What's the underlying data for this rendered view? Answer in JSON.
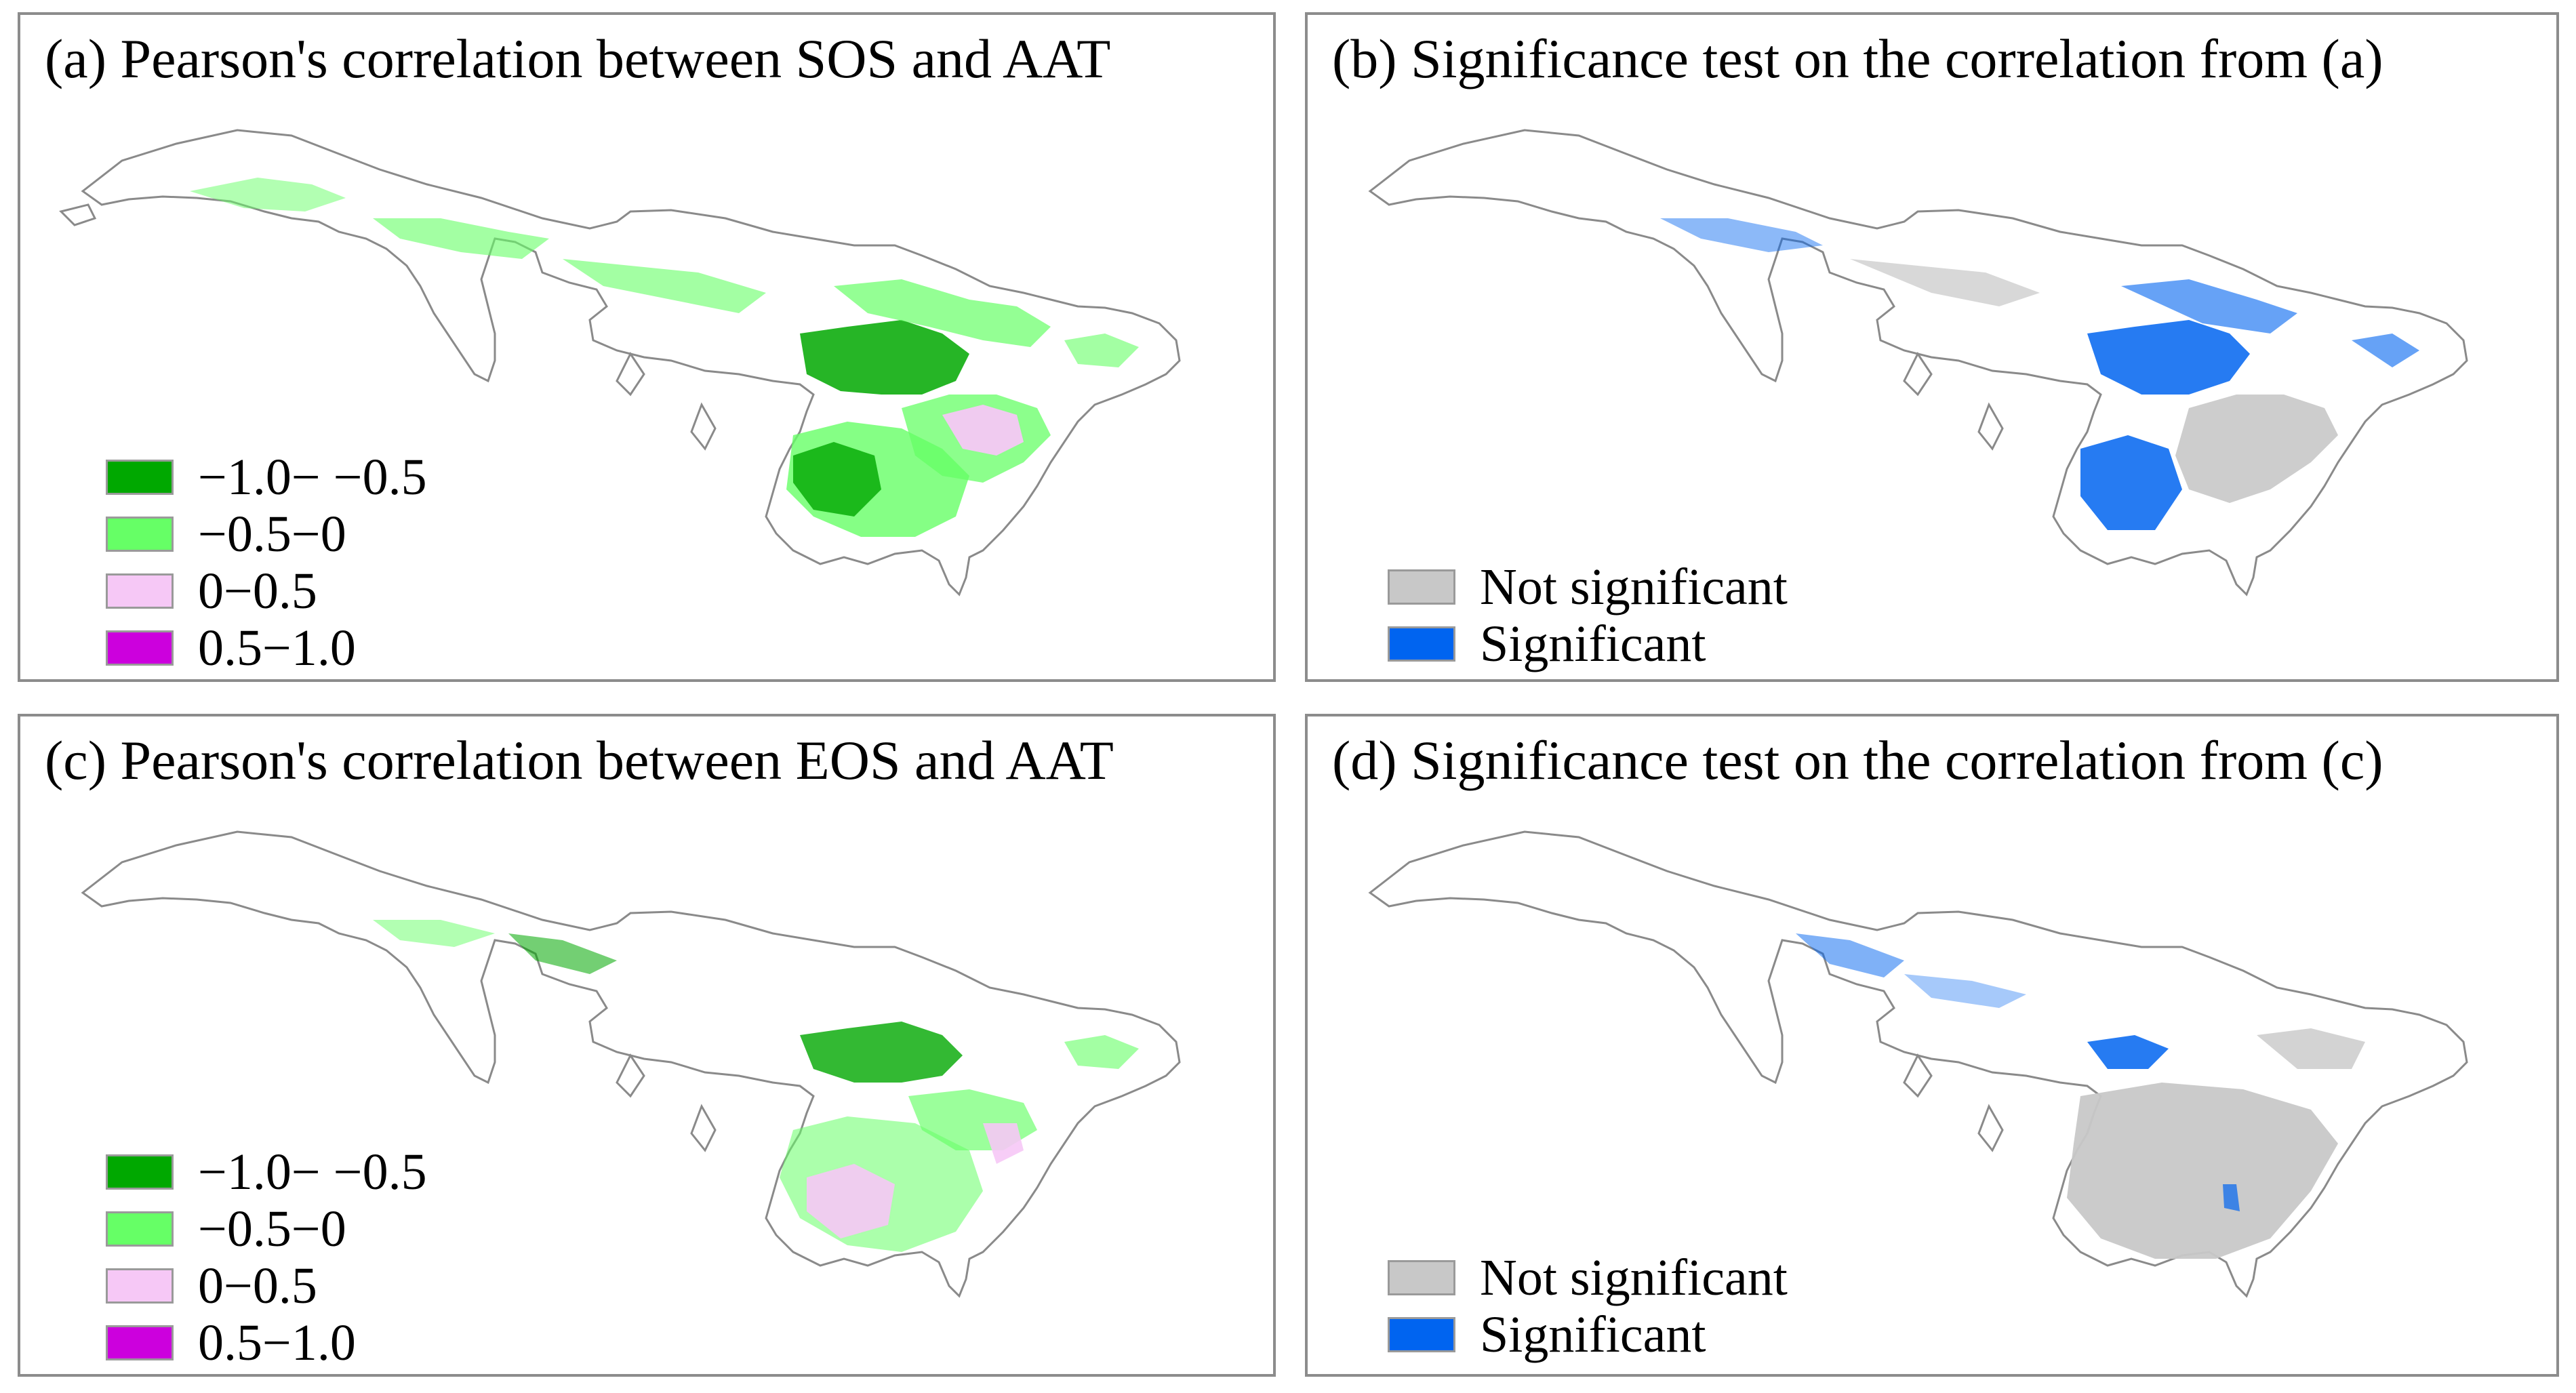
{
  "colors": {
    "strong_negative": "#00a800",
    "weak_negative": "#66ff66",
    "weak_positive": "#f6c8f6",
    "strong_positive": "#cc00dd",
    "not_significant": "#c8c8c8",
    "significant": "#0064f0",
    "outline": "#8a8a8a"
  },
  "panels": {
    "a": {
      "title": "(a) Pearson's correlation between SOS and AAT",
      "legend": [
        {
          "label": "−1.0− −0.5",
          "color": "#00a800"
        },
        {
          "label": "−0.5−0",
          "color": "#66ff66"
        },
        {
          "label": "0−0.5",
          "color": "#f6c8f6"
        },
        {
          "label": "0.5−1.0",
          "color": "#cc00dd"
        }
      ]
    },
    "b": {
      "title": "(b) Significance test on the correlation from (a)",
      "legend": [
        {
          "label": "Not significant",
          "color": "#c8c8c8"
        },
        {
          "label": "Significant",
          "color": "#0064f0"
        }
      ]
    },
    "c": {
      "title": "(c) Pearson's correlation between EOS and AAT",
      "legend": [
        {
          "label": "−1.0− −0.5",
          "color": "#00a800"
        },
        {
          "label": "−0.5−0",
          "color": "#66ff66"
        },
        {
          "label": "0−0.5",
          "color": "#f6c8f6"
        },
        {
          "label": "0.5−1.0",
          "color": "#cc00dd"
        }
      ]
    },
    "d": {
      "title": "(d) Significance test on the correlation from (c)",
      "legend": [
        {
          "label": "Not significant",
          "color": "#c8c8c8"
        },
        {
          "label": "Significant",
          "color": "#0064f0"
        }
      ]
    }
  }
}
